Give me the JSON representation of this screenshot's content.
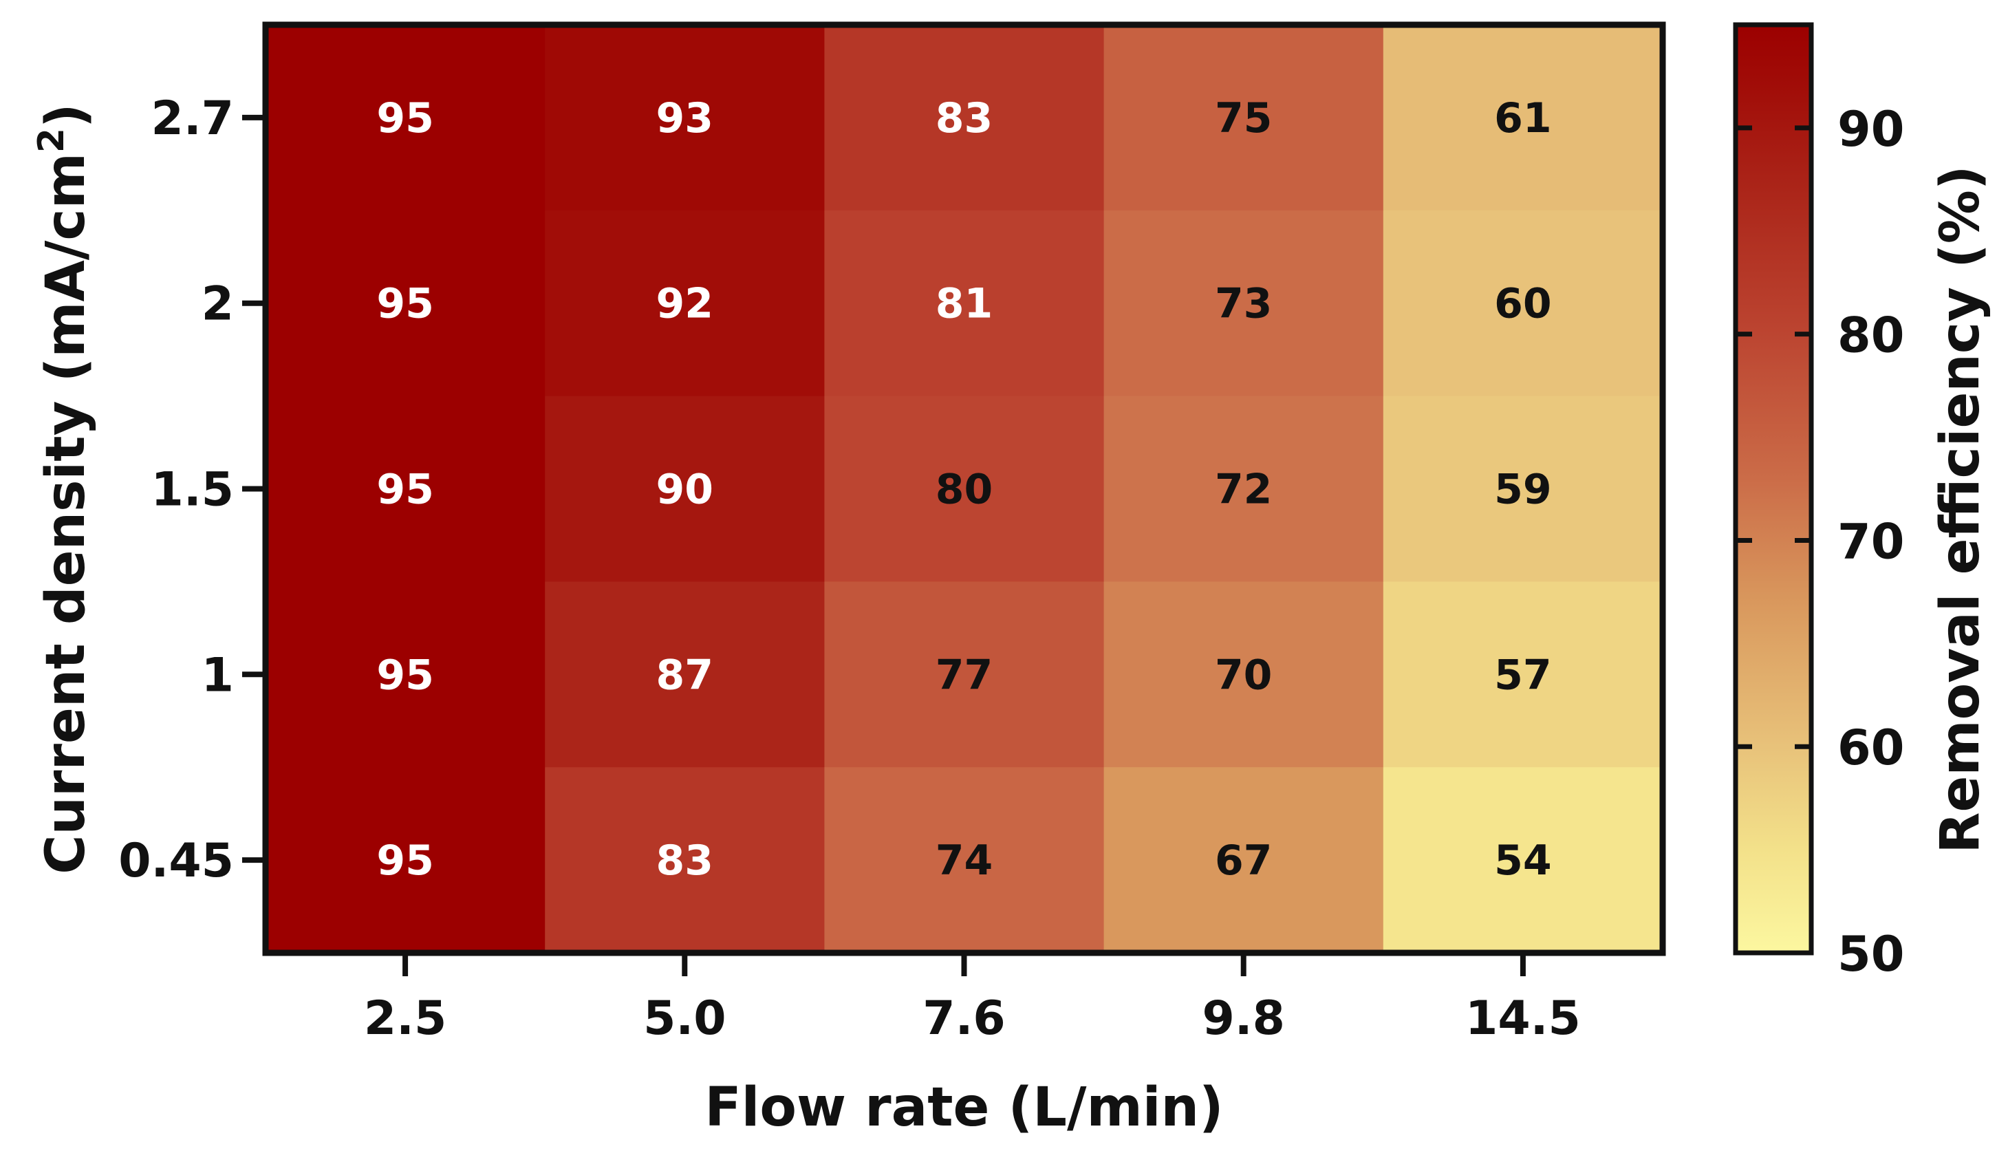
{
  "chart_data": {
    "type": "heatmap",
    "title": "",
    "xlabel": "Flow rate (L/min)",
    "ylabel_base": "Current density (mA/cm",
    "ylabel_sup": "2",
    "ylabel_tail": ")",
    "x_categories": [
      "2.5",
      "5.0",
      "7.6",
      "9.8",
      "14.5"
    ],
    "y_categories": [
      "2.7",
      "2",
      "1.5",
      "1",
      "0.45"
    ],
    "values": [
      [
        95,
        93,
        83,
        75,
        61
      ],
      [
        95,
        92,
        81,
        73,
        60
      ],
      [
        95,
        90,
        80,
        72,
        59
      ],
      [
        95,
        87,
        77,
        70,
        57
      ],
      [
        95,
        83,
        74,
        67,
        54
      ]
    ],
    "colorbar": {
      "label": "Removal efficiency (%)",
      "min": 50,
      "max": 95,
      "ticks": [
        50,
        60,
        70,
        80,
        90
      ],
      "tick_labels": [
        "50",
        "60",
        "70",
        "80",
        "90"
      ],
      "stops": [
        {
          "value": 50,
          "color": "#fcf7a0"
        },
        {
          "value": 55,
          "color": "#f3e18a"
        },
        {
          "value": 60,
          "color": "#e8c27a"
        },
        {
          "value": 67,
          "color": "#d9985d"
        },
        {
          "value": 73,
          "color": "#cb6c48"
        },
        {
          "value": 80,
          "color": "#bc4531"
        },
        {
          "value": 87,
          "color": "#ab2519"
        },
        {
          "value": 92,
          "color": "#a10d08"
        },
        {
          "value": 95,
          "color": "#9c0000"
        }
      ]
    },
    "label_colors": {
      "light": "#ffffff",
      "dark": "#111111"
    },
    "dark_label_below": 81
  }
}
